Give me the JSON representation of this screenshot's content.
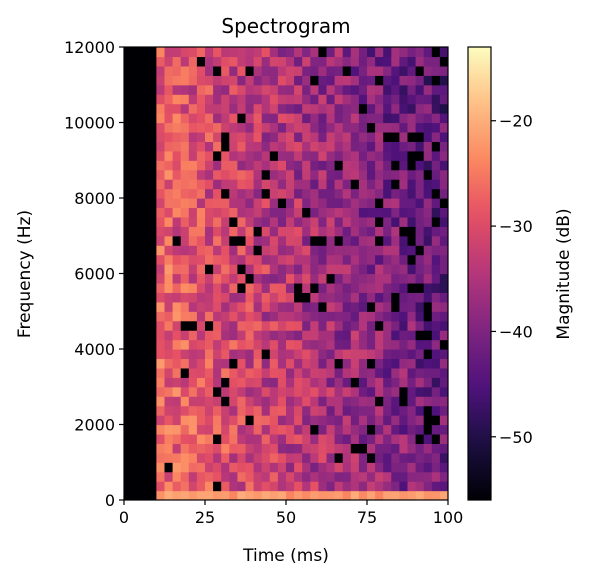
{
  "chart_data": {
    "type": "heatmap",
    "title": "Spectrogram",
    "xlabel": "Time (ms)",
    "ylabel": "Frequency (Hz)",
    "xlim": [
      0,
      100
    ],
    "ylim": [
      0,
      12000
    ],
    "x_ticks": [
      0,
      25,
      50,
      75,
      100
    ],
    "y_ticks": [
      0,
      2000,
      4000,
      6000,
      8000,
      10000,
      12000
    ],
    "colorbar": {
      "label": "Magnitude (dB)",
      "range": [
        -56,
        -13
      ],
      "ticks": [
        -20,
        -30,
        -40,
        -50
      ],
      "tick_labels": [
        "−20",
        "−30",
        "−40",
        "−50"
      ],
      "colormap": "magma"
    },
    "time_step_ms": 2.5,
    "freq_step_hz": 250,
    "silent_until_ms": 10,
    "grid_columns": 40,
    "grid_rows": 48,
    "magnitude_summary": {
      "early_level_db": -26,
      "late_level_db": -42,
      "lowest_band_level_db": -22
    },
    "grid": false
  }
}
